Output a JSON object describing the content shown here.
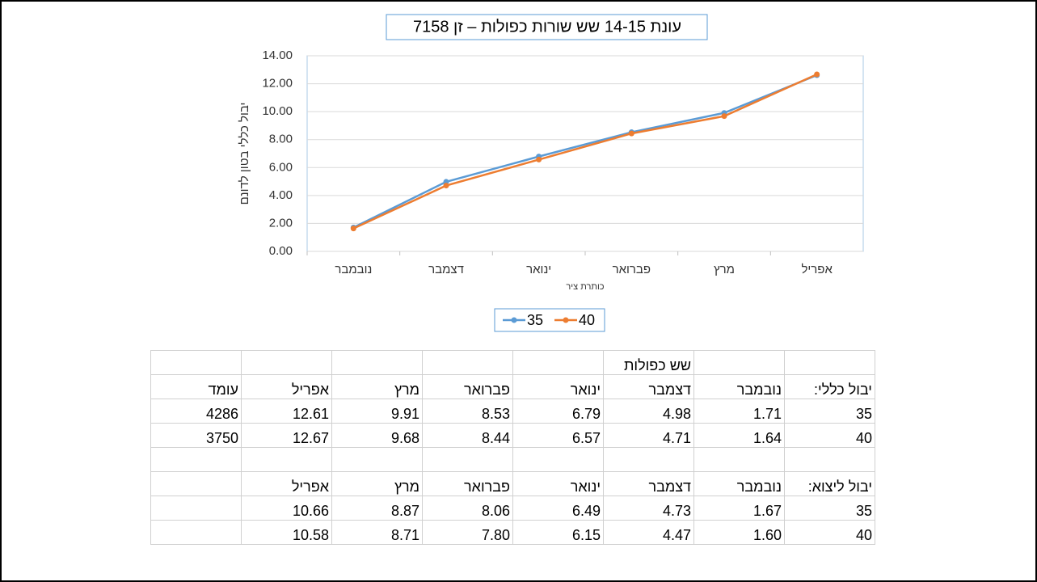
{
  "chart_data": {
    "type": "line",
    "title": "עונת 14-15 שש שורות כפולות – זן 7158",
    "y_label": "יבול כללי בטון לדונם",
    "x_label": "כותרת ציר",
    "categories": [
      "נובמבר",
      "דצמבר",
      "ינואר",
      "פברואר",
      "מרץ",
      "אפריל"
    ],
    "series": [
      {
        "name": "35",
        "color": "#5b9bd5",
        "values": [
          1.71,
          4.98,
          6.79,
          8.53,
          9.91,
          12.61
        ]
      },
      {
        "name": "40",
        "color": "#ed7d31",
        "values": [
          1.64,
          4.71,
          6.57,
          8.44,
          9.68,
          12.67
        ]
      }
    ],
    "ylim": [
      0,
      14
    ],
    "yticks": [
      {
        "value": 0,
        "label": "0.00"
      },
      {
        "value": 2,
        "label": "2.00"
      },
      {
        "value": 4,
        "label": "4.00"
      },
      {
        "value": 6,
        "label": "6.00"
      },
      {
        "value": 8,
        "label": "8.00"
      },
      {
        "value": 10,
        "label": "10.00"
      },
      {
        "value": 12,
        "label": "12.00"
      },
      {
        "value": 14,
        "label": "14.00"
      }
    ],
    "grid": true,
    "legend": "bottom"
  },
  "table": {
    "rows": [
      [
        null,
        null,
        "שש כפולות",
        null,
        null,
        null,
        null,
        null
      ],
      [
        "יבול כללי:",
        "נובמבר",
        "דצמבר",
        "ינואר",
        "פברואר",
        "מרץ",
        "אפריל",
        "עומד"
      ],
      [
        "35",
        "1.71",
        "4.98",
        "6.79",
        "8.53",
        "9.91",
        "12.61",
        "4286"
      ],
      [
        "40",
        "1.64",
        "4.71",
        "6.57",
        "8.44",
        "9.68",
        "12.67",
        "3750"
      ],
      [
        null,
        null,
        null,
        null,
        null,
        null,
        null,
        null
      ],
      [
        "יבול ליצוא:",
        "נובמבר",
        "דצמבר",
        "ינואר",
        "פברואר",
        "מרץ",
        "אפריל",
        null
      ],
      [
        "35",
        "1.67",
        "4.73",
        "6.49",
        "8.06",
        "8.87",
        "10.66",
        null
      ],
      [
        "40",
        "1.60",
        "4.47",
        "6.15",
        "7.80",
        "8.71",
        "10.58",
        null
      ]
    ]
  }
}
